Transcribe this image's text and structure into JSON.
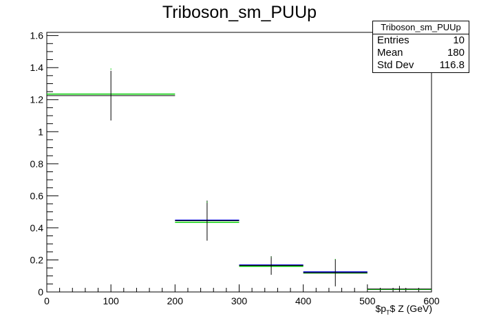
{
  "title": "Triboson_sm_PUUp",
  "stats": {
    "name": "Triboson_sm_PUUp",
    "rows": [
      {
        "label": "Entries",
        "value": "10"
      },
      {
        "label": "Mean",
        "value": "180"
      },
      {
        "label": "Std Dev",
        "value": "116.8"
      }
    ]
  },
  "chart_data": {
    "type": "scatter",
    "title": "Triboson_sm_PUUp",
    "xlabel": "$p_T$ Z (GeV)",
    "xlim": [
      0,
      600
    ],
    "ylim": [
      0,
      1.62
    ],
    "x_ticks": [
      "0",
      "100",
      "200",
      "300",
      "400",
      "500",
      "600"
    ],
    "y_ticks": [
      "0",
      "0.2",
      "0.4",
      "0.6",
      "0.8",
      "1",
      "1.2",
      "1.4",
      "1.6"
    ],
    "grid": false,
    "colors": {
      "nominal": "#000000",
      "green": "#00cc00",
      "blue": "#0000cc"
    },
    "bins": [
      {
        "x_low": 0,
        "x_high": 200,
        "center": 100,
        "y": 1.225,
        "err": 0.155,
        "green": 1.235
      },
      {
        "x_low": 200,
        "x_high": 300,
        "center": 250,
        "y": 0.445,
        "err": 0.125,
        "green": 0.435,
        "blue": 0.448
      },
      {
        "x_low": 300,
        "x_high": 400,
        "center": 350,
        "y": 0.165,
        "err": 0.058,
        "green": 0.16,
        "blue": 0.168
      },
      {
        "x_low": 400,
        "x_high": 500,
        "center": 450,
        "y": 0.12,
        "err": 0.085,
        "green": 0.118,
        "blue": 0.125
      },
      {
        "x_low": 500,
        "x_high": 600,
        "center": 550,
        "y": 0.018,
        "err": 0.02,
        "green": 0.016
      }
    ]
  }
}
